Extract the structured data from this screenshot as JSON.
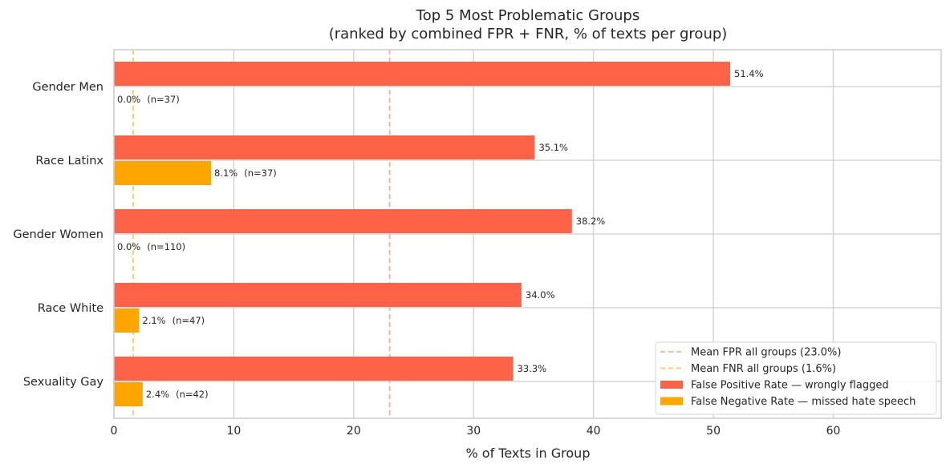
{
  "chart_data": {
    "type": "bar",
    "orientation": "horizontal",
    "title_line1": "Top 5 Most Problematic Groups",
    "title_line2": "(ranked by combined FPR + FNR, % of texts per group)",
    "xlabel": "% of Texts in Group",
    "ylabel": "",
    "xlim": [
      0,
      69
    ],
    "xticks": [
      0,
      10,
      20,
      30,
      40,
      50,
      60
    ],
    "grid": true,
    "legend_position": "lower-right",
    "categories": [
      "Gender Men",
      "Race Latinx",
      "Gender Women",
      "Race White",
      "Sexuality Gay"
    ],
    "n": [
      "(n=37)",
      "(n=37)",
      "(n=110)",
      "(n=47)",
      "(n=42)"
    ],
    "series": [
      {
        "name": "False Positive Rate — wrongly flagged",
        "color": "#ff6347",
        "values": [
          51.4,
          35.1,
          38.2,
          34.0,
          33.3
        ],
        "labels": [
          "51.4%",
          "35.1%",
          "38.2%",
          "34.0%",
          "33.3%"
        ]
      },
      {
        "name": "False Negative Rate — missed hate speech",
        "color": "#ffa500",
        "values": [
          0.0,
          8.1,
          0.0,
          2.1,
          2.4
        ],
        "labels": [
          "0.0%",
          "8.1%",
          "0.0%",
          "2.1%",
          "2.4%"
        ]
      }
    ],
    "reference_lines": [
      {
        "name": "Mean FPR all groups (23.0%)",
        "value": 23.0,
        "color": "#ffaa99"
      },
      {
        "name": "Mean FNR all groups (1.6%)",
        "value": 1.6,
        "color": "#ffc966"
      }
    ]
  }
}
